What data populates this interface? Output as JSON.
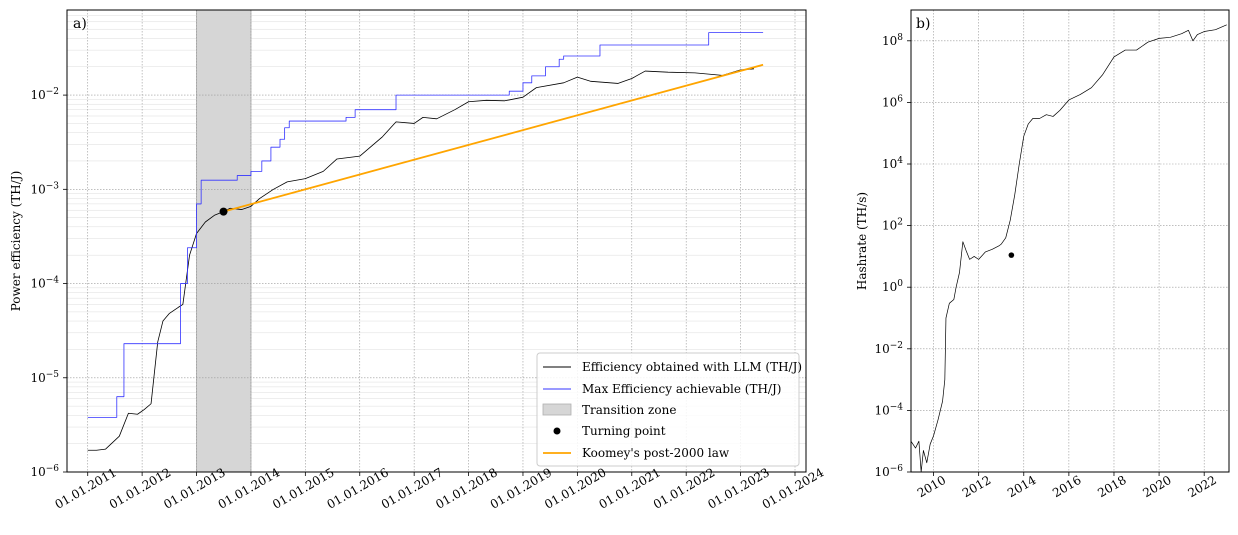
{
  "chart_data": [
    {
      "panel_label": "a)",
      "type": "line",
      "xlabel": "",
      "ylabel": "Power efficiency (TH/J)",
      "yscale": "log",
      "ylim": [
        1e-06,
        0.08
      ],
      "xlim": [
        "2010-08-15",
        "2024-03-15"
      ],
      "x_ticks": [
        "01.01.2011",
        "01.01.2012",
        "01.01.2013",
        "01.01.2014",
        "01.01.2015",
        "01.01.2016",
        "01.01.2017",
        "01.01.2018",
        "01.01.2019",
        "01.01.2020",
        "01.01.2021",
        "01.01.2022",
        "01.01.2023",
        "01.01.2024"
      ],
      "y_ticks": [
        {
          "value": 1e-06,
          "base": "10",
          "exp": "−6"
        },
        {
          "value": 1e-05,
          "base": "10",
          "exp": "−5"
        },
        {
          "value": 0.0001,
          "base": "10",
          "exp": "−4"
        },
        {
          "value": 0.001,
          "base": "10",
          "exp": "−3"
        },
        {
          "value": 0.01,
          "base": "10",
          "exp": "−2"
        }
      ],
      "grid": true,
      "legend_position": "lower-right",
      "transition_zone": {
        "name": "Transition zone",
        "from": "2013-01-01",
        "to": "2014-01-01",
        "color": "#d6d6d6"
      },
      "turning_point": {
        "name": "Turning point",
        "x": "2013-07-01",
        "y": 0.00058,
        "color": "#000000"
      },
      "series": [
        {
          "name": "Efficiency obtained with LLM (TH/J)",
          "color": "#000000",
          "style": "line",
          "points": [
            [
              "2011-01-01",
              1.7e-06
            ],
            [
              "2011-03-01",
              1.7e-06
            ],
            [
              "2011-05-01",
              1.75e-06
            ],
            [
              "2011-08-01",
              2.4e-06
            ],
            [
              "2011-10-01",
              4.2e-06
            ],
            [
              "2011-12-01",
              4.1e-06
            ],
            [
              "2012-01-15",
              4.6e-06
            ],
            [
              "2012-03-01",
              5.3e-06
            ],
            [
              "2012-04-15",
              2.4e-05
            ],
            [
              "2012-05-20",
              4e-05
            ],
            [
              "2012-07-01",
              4.8e-05
            ],
            [
              "2012-09-01",
              5.6e-05
            ],
            [
              "2012-10-01",
              6e-05
            ],
            [
              "2012-11-15",
              0.0002
            ],
            [
              "2013-01-01",
              0.00034
            ],
            [
              "2013-03-01",
              0.00045
            ],
            [
              "2013-05-01",
              0.00053
            ],
            [
              "2013-07-01",
              0.00058
            ],
            [
              "2013-08-15",
              0.00063
            ],
            [
              "2013-11-01",
              0.00061
            ],
            [
              "2014-01-01",
              0.00066
            ],
            [
              "2014-03-01",
              0.0008
            ],
            [
              "2014-06-01",
              0.001
            ],
            [
              "2014-09-01",
              0.0012
            ],
            [
              "2015-01-01",
              0.0013
            ],
            [
              "2015-05-01",
              0.00155
            ],
            [
              "2015-08-01",
              0.0021
            ],
            [
              "2016-01-01",
              0.00225
            ],
            [
              "2016-06-01",
              0.0036
            ],
            [
              "2016-09-01",
              0.0052
            ],
            [
              "2017-01-01",
              0.005
            ],
            [
              "2017-03-01",
              0.0058
            ],
            [
              "2017-06-01",
              0.0056
            ],
            [
              "2017-10-01",
              0.007
            ],
            [
              "2018-01-01",
              0.0085
            ],
            [
              "2018-05-01",
              0.0088
            ],
            [
              "2018-09-01",
              0.0087
            ],
            [
              "2019-01-01",
              0.0095
            ],
            [
              "2019-04-01",
              0.012
            ],
            [
              "2019-10-01",
              0.0135
            ],
            [
              "2020-01-01",
              0.0155
            ],
            [
              "2020-04-01",
              0.014
            ],
            [
              "2020-10-01",
              0.0133
            ],
            [
              "2021-01-01",
              0.015
            ],
            [
              "2021-04-01",
              0.018
            ],
            [
              "2021-09-01",
              0.0175
            ],
            [
              "2022-03-01",
              0.0172
            ],
            [
              "2022-09-01",
              0.0162
            ],
            [
              "2023-01-01",
              0.0185
            ],
            [
              "2023-04-01",
              0.019
            ]
          ]
        },
        {
          "name": "Max Efficiency achievable (TH/J)",
          "color": "#3333ff",
          "style": "step",
          "points": [
            [
              "2011-01-01",
              3.8e-06
            ],
            [
              "2011-07-15",
              6.3e-06
            ],
            [
              "2011-09-01",
              2.3e-05
            ],
            [
              "2012-09-15",
              0.0001
            ],
            [
              "2012-11-01",
              0.00024
            ],
            [
              "2013-01-01",
              0.0007
            ],
            [
              "2013-02-01",
              0.00125
            ],
            [
              "2013-10-01",
              0.0014
            ],
            [
              "2014-01-01",
              0.00155
            ],
            [
              "2014-03-15",
              0.002
            ],
            [
              "2014-05-15",
              0.0028
            ],
            [
              "2014-07-15",
              0.0034
            ],
            [
              "2014-08-15",
              0.0045
            ],
            [
              "2014-09-15",
              0.0053
            ],
            [
              "2015-10-01",
              0.0058
            ],
            [
              "2015-12-01",
              0.007
            ],
            [
              "2016-09-01",
              0.01
            ],
            [
              "2018-10-01",
              0.011
            ],
            [
              "2019-01-01",
              0.0135
            ],
            [
              "2019-03-01",
              0.016
            ],
            [
              "2019-06-01",
              0.02
            ],
            [
              "2019-09-01",
              0.024
            ],
            [
              "2019-10-01",
              0.026
            ],
            [
              "2020-06-01",
              0.034
            ],
            [
              "2022-06-01",
              0.046
            ],
            [
              "2023-06-01",
              0.046
            ]
          ]
        },
        {
          "name": "Koomey's post-2000 law",
          "color": "#ffa500",
          "style": "line",
          "points": [
            [
              "2013-07-01",
              0.00058
            ],
            [
              "2023-06-01",
              0.021
            ]
          ]
        }
      ]
    },
    {
      "panel_label": "b)",
      "type": "line",
      "xlabel": "",
      "ylabel": "Hashrate (TH/s)",
      "yscale": "log",
      "ylim": [
        1e-06,
        1000000000.0
      ],
      "xlim": [
        2009.0,
        2023.1
      ],
      "x_ticks": [
        "2010",
        "2012",
        "2014",
        "2016",
        "2018",
        "2020",
        "2022"
      ],
      "y_ticks": [
        {
          "value": 1e-06,
          "base": "10",
          "exp": "−6"
        },
        {
          "value": 0.0001,
          "base": "10",
          "exp": "−4"
        },
        {
          "value": 0.01,
          "base": "10",
          "exp": "−2"
        },
        {
          "value": 1,
          "base": "10",
          "exp": "0"
        },
        {
          "value": 100,
          "base": "10",
          "exp": "2"
        },
        {
          "value": 10000.0,
          "base": "10",
          "exp": "4"
        },
        {
          "value": 1000000.0,
          "base": "10",
          "exp": "6"
        },
        {
          "value": 100000000.0,
          "base": "10",
          "exp": "8"
        }
      ],
      "grid": true,
      "turning_point": {
        "x": 2013.45,
        "y": 11,
        "color": "#000000"
      },
      "series": [
        {
          "name": "",
          "color": "#000000",
          "style": "line",
          "points": [
            [
              2009.0,
              1e-05
            ],
            [
              2009.2,
              6e-06
            ],
            [
              2009.35,
              1e-05
            ],
            [
              2009.45,
              1e-06
            ],
            [
              2009.55,
              5e-06
            ],
            [
              2009.7,
              2e-06
            ],
            [
              2009.85,
              8e-06
            ],
            [
              2010.0,
              1.5e-05
            ],
            [
              2010.2,
              5e-05
            ],
            [
              2010.4,
              0.0002
            ],
            [
              2010.5,
              0.001
            ],
            [
              2010.55,
              0.1
            ],
            [
              2010.7,
              0.3
            ],
            [
              2010.9,
              0.4
            ],
            [
              2011.0,
              1
            ],
            [
              2011.15,
              3
            ],
            [
              2011.3,
              30
            ],
            [
              2011.45,
              15
            ],
            [
              2011.6,
              8
            ],
            [
              2011.8,
              10
            ],
            [
              2012.0,
              8
            ],
            [
              2012.3,
              14
            ],
            [
              2012.6,
              17
            ],
            [
              2012.9,
              22
            ],
            [
              2013.0,
              25
            ],
            [
              2013.2,
              40
            ],
            [
              2013.4,
              150
            ],
            [
              2013.6,
              1000
            ],
            [
              2013.8,
              10000
            ],
            [
              2014.0,
              80000
            ],
            [
              2014.2,
              200000
            ],
            [
              2014.4,
              300000
            ],
            [
              2014.7,
              300000
            ],
            [
              2015.0,
              400000
            ],
            [
              2015.3,
              350000
            ],
            [
              2015.6,
              550000
            ],
            [
              2016.0,
              1200000
            ],
            [
              2016.5,
              1800000
            ],
            [
              2017.0,
              3000000
            ],
            [
              2017.5,
              8000000
            ],
            [
              2018.0,
              30000000
            ],
            [
              2018.5,
              50000000
            ],
            [
              2019.0,
              50000000
            ],
            [
              2019.5,
              90000000
            ],
            [
              2020.0,
              120000000
            ],
            [
              2020.5,
              130000000
            ],
            [
              2021.0,
              170000000
            ],
            [
              2021.3,
              220000000
            ],
            [
              2021.5,
              100000000
            ],
            [
              2021.7,
              160000000
            ],
            [
              2022.0,
              200000000
            ],
            [
              2022.5,
              230000000
            ],
            [
              2023.0,
              330000000
            ]
          ]
        }
      ]
    }
  ]
}
